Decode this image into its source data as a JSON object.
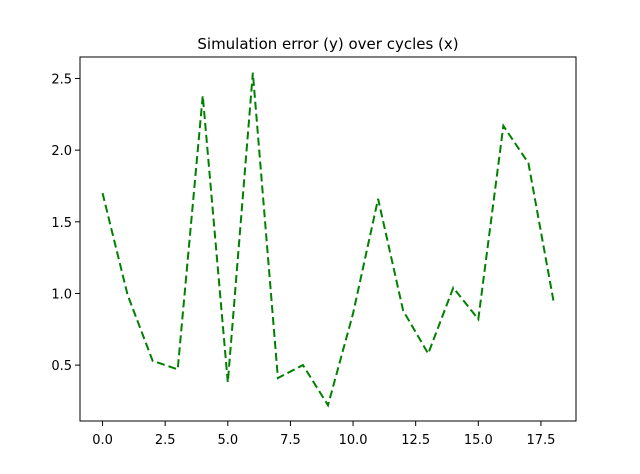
{
  "chart_data": {
    "type": "line",
    "title": "Simulation error (y) over cycles (x)",
    "xlabel": "",
    "ylabel": "",
    "xlim": [
      -0.9,
      18.9
    ],
    "ylim": [
      0.11,
      2.65
    ],
    "x_ticks": [
      0.0,
      2.5,
      5.0,
      7.5,
      10.0,
      12.5,
      15.0,
      17.5
    ],
    "x_tick_labels": [
      "0.0",
      "2.5",
      "5.0",
      "7.5",
      "10.0",
      "12.5",
      "15.0",
      "17.5"
    ],
    "y_ticks": [
      0.5,
      1.0,
      1.5,
      2.0,
      2.5
    ],
    "y_tick_labels": [
      "0.5",
      "1.0",
      "1.5",
      "2.0",
      "2.5"
    ],
    "grid": false,
    "legend": "none",
    "series": [
      {
        "color": "#008000",
        "line_style": "dashed",
        "x": [
          0,
          1,
          2,
          3,
          4,
          5,
          6,
          7,
          8,
          9,
          10,
          11,
          12,
          13,
          14,
          15,
          16,
          17,
          18
        ],
        "y": [
          1.7,
          0.99,
          0.53,
          0.47,
          2.38,
          0.38,
          2.54,
          0.41,
          0.5,
          0.22,
          0.86,
          1.66,
          0.88,
          0.58,
          1.04,
          0.82,
          2.17,
          1.91,
          0.95
        ]
      }
    ]
  }
}
